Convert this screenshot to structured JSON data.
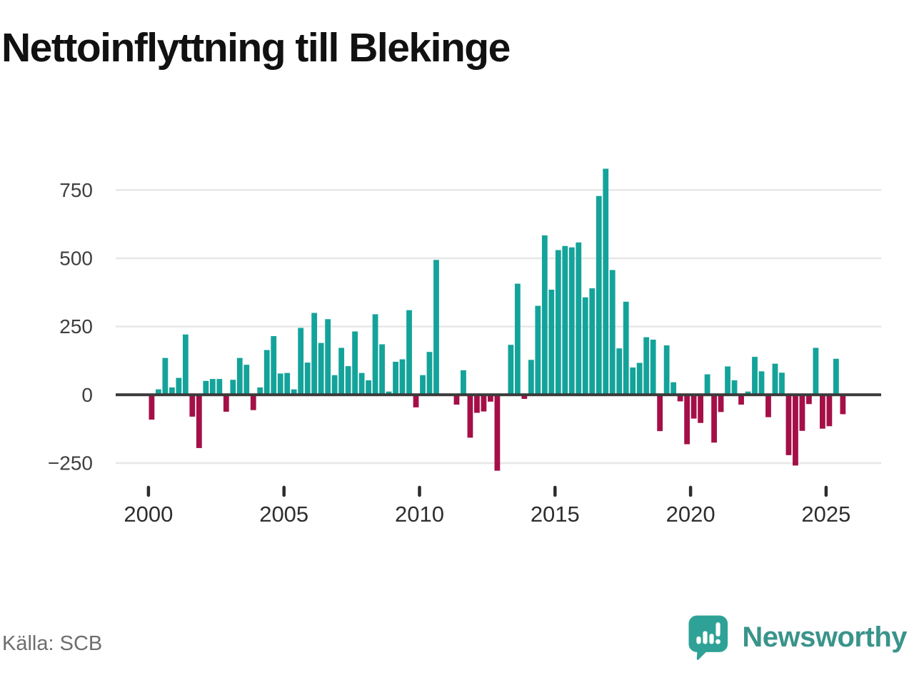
{
  "title": "Nettoinflyttning till Blekinge",
  "source": "Källa: SCB",
  "branding": {
    "name": "Newsworthy",
    "wordmark_color": "#3A948B",
    "icon": "bar-chart-speech-bubble-icon",
    "icon_color": "#2EA296"
  },
  "chart_data": {
    "type": "bar",
    "title": "Nettoinflyttning till Blekinge",
    "x_unit": "quarter",
    "x_start": {
      "year": 2000,
      "quarter": 1
    },
    "x_end": {
      "year": 2025,
      "quarter": 3
    },
    "x_tick_years": [
      2000,
      2005,
      2010,
      2015,
      2020,
      2025
    ],
    "y_ticks": [
      750,
      500,
      250,
      0,
      -250
    ],
    "ylim": [
      -300,
      870
    ],
    "grid": true,
    "legend": "none",
    "positive_color": "#14A39A",
    "negative_color": "#A50F47",
    "gridline_color": "#e7e7e7",
    "baseline_color": "#3a3a3a",
    "values_by_year": {
      "2000": [
        -91,
        20,
        135,
        27
      ],
      "2001": [
        62,
        221,
        -80,
        -195
      ],
      "2002": [
        51,
        58,
        58,
        -62
      ],
      "2003": [
        55,
        135,
        110,
        -56
      ],
      "2004": [
        27,
        164,
        215,
        78
      ],
      "2005": [
        80,
        20,
        245,
        118
      ],
      "2006": [
        300,
        190,
        277,
        72
      ],
      "2007": [
        172,
        105,
        232,
        80
      ],
      "2008": [
        53,
        295,
        185,
        12
      ],
      "2009": [
        121,
        130,
        310,
        -46
      ],
      "2010": [
        72,
        157,
        494,
        0
      ],
      "2011": [
        0,
        -36,
        90,
        -157
      ],
      "2012": [
        -66,
        -61,
        -25,
        -278
      ],
      "2013": [
        0,
        183,
        407,
        -15
      ],
      "2014": [
        128,
        326,
        584,
        385
      ],
      "2015": [
        530,
        545,
        540,
        558
      ],
      "2016": [
        357,
        390,
        728,
        828
      ],
      "2017": [
        457,
        170,
        341,
        100
      ],
      "2018": [
        117,
        211,
        202,
        -133
      ],
      "2019": [
        181,
        46,
        -24,
        -181
      ],
      "2020": [
        -87,
        -103,
        75,
        -175
      ],
      "2021": [
        -63,
        104,
        53,
        -36
      ],
      "2022": [
        12,
        139,
        86,
        -82
      ],
      "2023": [
        114,
        81,
        -221,
        -259
      ],
      "2024": [
        -132,
        -34,
        172,
        -124
      ],
      "2025": [
        -115,
        132,
        -71
      ]
    }
  }
}
